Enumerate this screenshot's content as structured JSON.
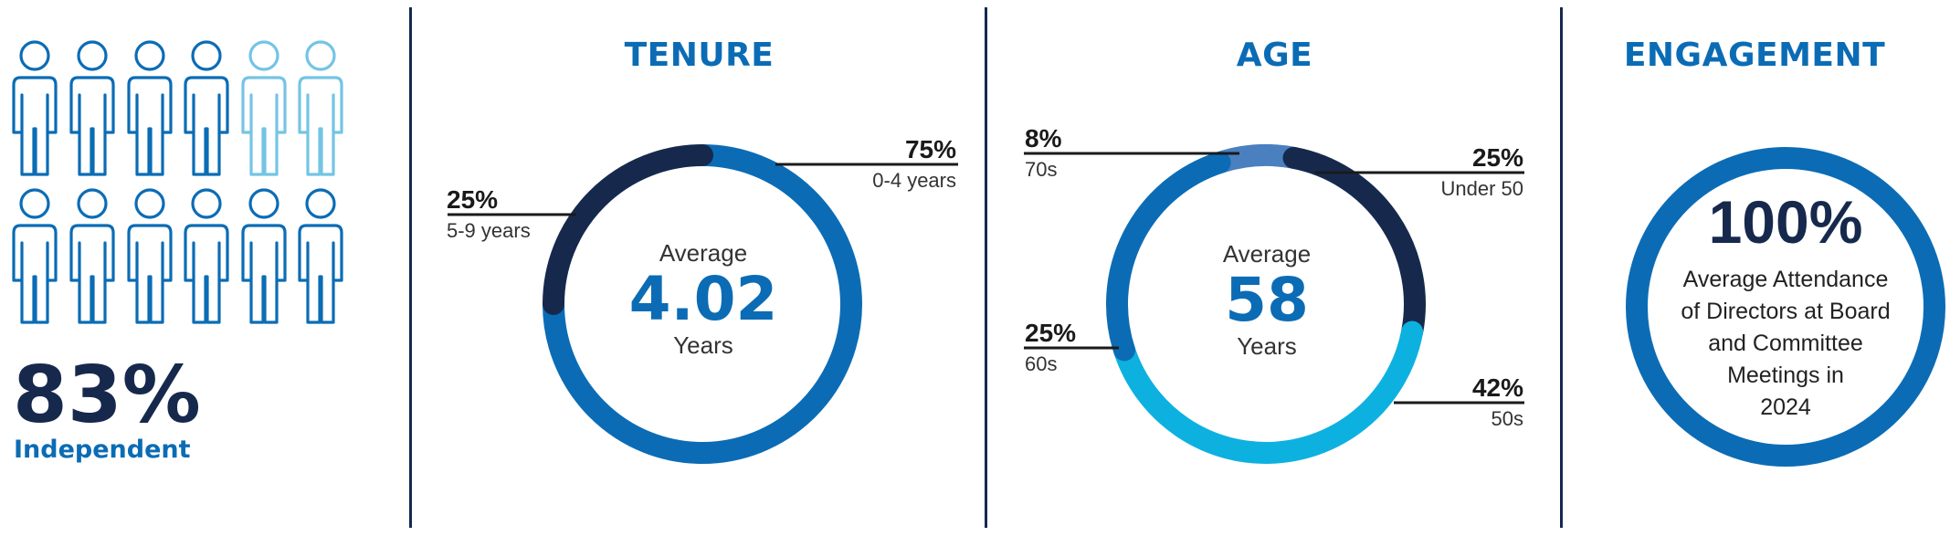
{
  "colors": {
    "navy": "#16294d",
    "blue": "#0b6cb5",
    "mid_blue": "#4a80c0",
    "light_blue": "#0db1e0",
    "pale_blue": "#74c4e4"
  },
  "independence": {
    "value": "83%",
    "label": "Independent",
    "icon": "person-outline-icon",
    "total_directors": 12,
    "independent_count": 10
  },
  "tenure": {
    "title": "TENURE",
    "center_label": "Average",
    "center_value": "4.02",
    "center_unit": "Years"
  },
  "age": {
    "title": "AGE",
    "center_label": "Average",
    "center_value": "58",
    "center_unit": "Years"
  },
  "engagement": {
    "title": "ENGAGEMENT",
    "value": "100%",
    "lines": [
      "Average Attendance",
      "of Directors at Board",
      "and Committee",
      "Meetings in",
      "2024"
    ]
  },
  "chart_data": [
    {
      "type": "pie",
      "title": "TENURE",
      "donut": true,
      "labels": [
        "0-4 years",
        "5-9 years"
      ],
      "values": [
        75,
        25
      ],
      "value_labels": [
        "75%",
        "25%"
      ],
      "colors": [
        "#0b6cb5",
        "#16294d"
      ]
    },
    {
      "type": "pie",
      "title": "AGE",
      "donut": true,
      "labels": [
        "Under 50",
        "50s",
        "60s",
        "70s"
      ],
      "values": [
        25,
        42,
        25,
        8
      ],
      "value_labels": [
        "25%",
        "42%",
        "25%",
        "8%"
      ],
      "colors": [
        "#16294d",
        "#0db1e0",
        "#0b6cb5",
        "#4a80c0"
      ]
    },
    {
      "type": "pie",
      "title": "ENGAGEMENT",
      "donut": true,
      "labels": [
        "Average Attendance"
      ],
      "values": [
        100
      ],
      "value_labels": [
        "100%"
      ],
      "colors": [
        "#0b6cb5"
      ]
    }
  ]
}
